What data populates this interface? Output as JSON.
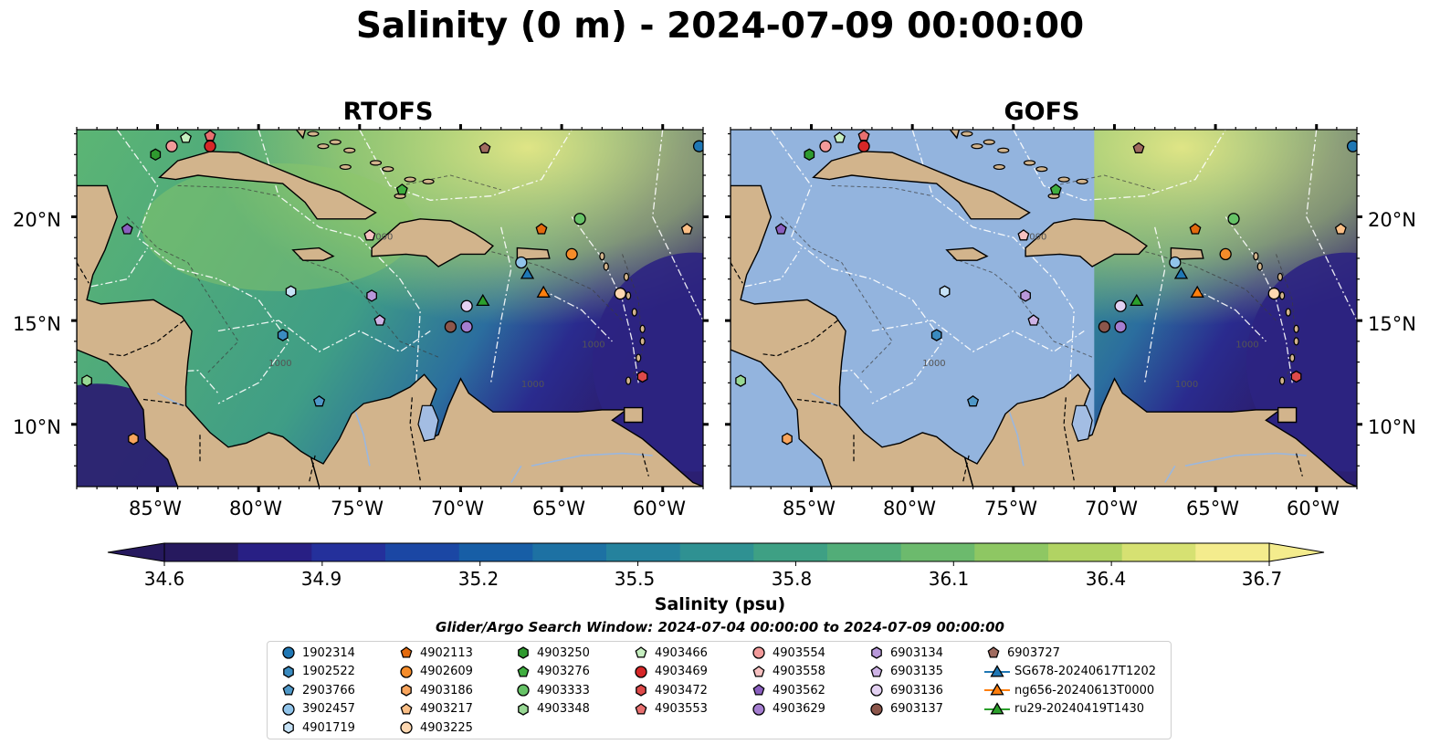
{
  "title": "Salinity (0 m) - 2024-07-09 00:00:00",
  "panels": [
    {
      "title": "RTOFS",
      "mode": "full"
    },
    {
      "title": "GOFS",
      "mode": "split"
    }
  ],
  "lon_ticks": [
    "85°W",
    "80°W",
    "75°W",
    "70°W",
    "65°W",
    "60°W"
  ],
  "lon_values": [
    -85,
    -80,
    -75,
    -70,
    -65,
    -60
  ],
  "lat_ticks": [
    "20°N",
    "15°N",
    "10°N"
  ],
  "lat_values": [
    20,
    15,
    10
  ],
  "map_extent": {
    "lon_min": -89,
    "lon_max": -58,
    "lat_min": 7,
    "lat_max": 24.2
  },
  "isobath_label": "1000",
  "colorbar": {
    "label": "Salinity (psu)",
    "ticks": [
      "34.6",
      "34.9",
      "35.2",
      "35.5",
      "35.8",
      "36.1",
      "36.4",
      "36.7"
    ],
    "min": 34.6,
    "max": 36.7,
    "colors": [
      "#26195e",
      "#281f84",
      "#24309b",
      "#1b47a4",
      "#175ea6",
      "#1d71a3",
      "#25829d",
      "#2f9192",
      "#3ea084",
      "#52ad78",
      "#6cba6d",
      "#8ec763",
      "#b1d363",
      "#d6e172",
      "#f4ec8d"
    ]
  },
  "colors": {
    "land": "#d2b48c",
    "gofs_nodata": "#93b4de",
    "ocean_low": "#2f1f74",
    "ocean_mid": "#3a9c86",
    "ocean_high": "#d5e37a"
  },
  "search_window": "Glider/Argo Search Window: 2024-07-04 00:00:00 to 2024-07-09 00:00:00",
  "legend": [
    {
      "label": "1902314",
      "marker": "circle",
      "color": "#1f77b4"
    },
    {
      "label": "1902522",
      "marker": "hexagon",
      "color": "#3a8bc0"
    },
    {
      "label": "2903766",
      "marker": "pentagon",
      "color": "#4f98c8"
    },
    {
      "label": "3902457",
      "marker": "circle",
      "color": "#91c4ea"
    },
    {
      "label": "4901719",
      "marker": "hexagon",
      "color": "#c6e2f6"
    },
    {
      "label": "4902113",
      "marker": "pentagon",
      "color": "#e36a0e"
    },
    {
      "label": "4902609",
      "marker": "circle",
      "color": "#f58c2a"
    },
    {
      "label": "4903186",
      "marker": "hexagon",
      "color": "#f9a55d"
    },
    {
      "label": "4903217",
      "marker": "pentagon",
      "color": "#fbbf86"
    },
    {
      "label": "4903225",
      "marker": "circle",
      "color": "#fdd7b0"
    },
    {
      "label": "4903250",
      "marker": "hexagon",
      "color": "#2f9a2f"
    },
    {
      "label": "4903276",
      "marker": "pentagon",
      "color": "#3fae3f"
    },
    {
      "label": "4903333",
      "marker": "circle",
      "color": "#66c266"
    },
    {
      "label": "4903348",
      "marker": "hexagon",
      "color": "#98d894"
    },
    {
      "label": "4903466",
      "marker": "pentagon",
      "color": "#c6efc0"
    },
    {
      "label": "4903469",
      "marker": "circle",
      "color": "#d62728"
    },
    {
      "label": "4903472",
      "marker": "hexagon",
      "color": "#de4a4a"
    },
    {
      "label": "4903553",
      "marker": "pentagon",
      "color": "#e87070"
    },
    {
      "label": "4903554",
      "marker": "circle",
      "color": "#f29a9a"
    },
    {
      "label": "4903558",
      "marker": "pentagon",
      "color": "#f7c1c1"
    },
    {
      "label": "4903562",
      "marker": "pentagon",
      "color": "#8a5fbf"
    },
    {
      "label": "4903629",
      "marker": "circle",
      "color": "#a57ed0"
    },
    {
      "label": "6903134",
      "marker": "hexagon",
      "color": "#b898da"
    },
    {
      "label": "6903135",
      "marker": "pentagon",
      "color": "#ceb3e6"
    },
    {
      "label": "6903136",
      "marker": "circle",
      "color": "#e3d1f2"
    },
    {
      "label": "6903137",
      "marker": "circle",
      "color": "#8c564b"
    },
    {
      "label": "6903727",
      "marker": "pentagon",
      "color": "#a06b5f"
    },
    {
      "label": "SG678-20240617T1202",
      "marker": "triangle-line",
      "color": "#1f77b4"
    },
    {
      "label": "ng656-20240613T0000",
      "marker": "triangle-line",
      "color": "#ff7f0e"
    },
    {
      "label": "ru29-20240419T1430",
      "marker": "triangle-line",
      "color": "#2ca02c"
    }
  ],
  "platforms": [
    {
      "label": "1902314",
      "lon": -58.2,
      "lat": 23.4
    },
    {
      "label": "1902522",
      "lon": -78.8,
      "lat": 14.3
    },
    {
      "label": "2903766",
      "lon": -77.0,
      "lat": 11.1
    },
    {
      "label": "3902457",
      "lon": -67.0,
      "lat": 17.8
    },
    {
      "label": "4901719",
      "lon": -78.4,
      "lat": 16.4
    },
    {
      "label": "4902113",
      "lon": -66.0,
      "lat": 19.4
    },
    {
      "label": "4902609",
      "lon": -64.5,
      "lat": 18.2
    },
    {
      "label": "4903186",
      "lon": -86.2,
      "lat": 9.3
    },
    {
      "label": "4903217",
      "lon": -58.8,
      "lat": 19.4
    },
    {
      "label": "4903225",
      "lon": -62.1,
      "lat": 16.3
    },
    {
      "label": "4903250",
      "lon": -85.1,
      "lat": 23.0
    },
    {
      "label": "4903276",
      "lon": -72.9,
      "lat": 21.3
    },
    {
      "label": "4903333",
      "lon": -64.1,
      "lat": 19.9
    },
    {
      "label": "4903348",
      "lon": -88.5,
      "lat": 12.1
    },
    {
      "label": "4903466",
      "lon": -83.6,
      "lat": 23.8
    },
    {
      "label": "4903469",
      "lon": -82.4,
      "lat": 23.4
    },
    {
      "label": "4903472",
      "lon": -61.0,
      "lat": 12.3
    },
    {
      "label": "4903553",
      "lon": -82.4,
      "lat": 23.9
    },
    {
      "label": "4903554",
      "lon": -84.3,
      "lat": 23.4
    },
    {
      "label": "4903558",
      "lon": -74.5,
      "lat": 19.1
    },
    {
      "label": "4903562",
      "lon": -86.5,
      "lat": 19.4
    },
    {
      "label": "4903629",
      "lon": -69.7,
      "lat": 14.7
    },
    {
      "label": "6903134",
      "lon": -74.4,
      "lat": 16.2
    },
    {
      "label": "6903135",
      "lon": -74.0,
      "lat": 15.0
    },
    {
      "label": "6903136",
      "lon": -69.7,
      "lat": 15.7
    },
    {
      "label": "6903137",
      "lon": -70.5,
      "lat": 14.7
    },
    {
      "label": "6903727",
      "lon": -68.8,
      "lat": 23.3
    },
    {
      "label": "SG678-20240617T1202",
      "lon": -66.7,
      "lat": 17.2
    },
    {
      "label": "ng656-20240613T0000",
      "lon": -65.9,
      "lat": 16.3
    },
    {
      "label": "ru29-20240419T1430",
      "lon": -68.9,
      "lat": 15.9
    }
  ]
}
